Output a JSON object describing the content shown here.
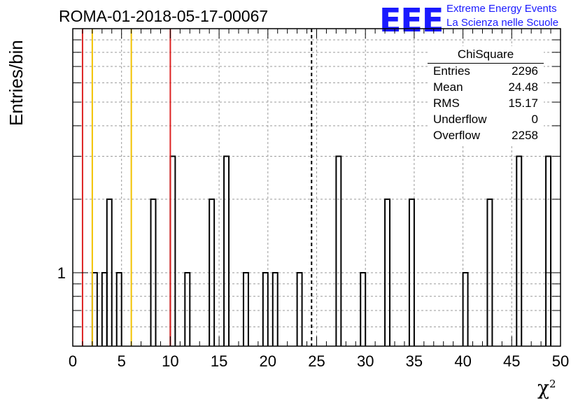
{
  "title": "ROMA-01-2018-05-17-00067",
  "logo": {
    "mark": "EEE",
    "line1": "Extreme Energy Events",
    "line2": "La Scienza nelle Scuole"
  },
  "stats": {
    "name": "ChiSquare",
    "rows": [
      {
        "key": "Entries",
        "value": "2296"
      },
      {
        "key": "Mean",
        "value": "24.48"
      },
      {
        "key": "RMS",
        "value": "15.17"
      },
      {
        "key": "Underflow",
        "value": "0"
      },
      {
        "key": "Overflow",
        "value": "2258"
      }
    ]
  },
  "chart_data": {
    "type": "bar",
    "histogram": true,
    "title": "ROMA-01-2018-05-17-00067",
    "xlabel": "χ²",
    "ylabel": "Entries/bin",
    "xlim": [
      0,
      50
    ],
    "ylim": [
      0.5,
      10
    ],
    "yscale": "log",
    "bin_width": 0.5,
    "grid": true,
    "x_ticks": [
      "0",
      "5",
      "10",
      "15",
      "20",
      "25",
      "30",
      "35",
      "40",
      "45",
      "50"
    ],
    "y_ticks": [
      "1"
    ],
    "bins": [
      {
        "x": 2.0,
        "value": 1
      },
      {
        "x": 3.0,
        "value": 1
      },
      {
        "x": 3.5,
        "value": 2
      },
      {
        "x": 4.5,
        "value": 1
      },
      {
        "x": 8.0,
        "value": 2
      },
      {
        "x": 10.0,
        "value": 3
      },
      {
        "x": 11.5,
        "value": 1
      },
      {
        "x": 14.0,
        "value": 2
      },
      {
        "x": 15.5,
        "value": 3
      },
      {
        "x": 17.5,
        "value": 1
      },
      {
        "x": 19.5,
        "value": 1
      },
      {
        "x": 20.5,
        "value": 1
      },
      {
        "x": 23.0,
        "value": 1
      },
      {
        "x": 27.0,
        "value": 3
      },
      {
        "x": 29.5,
        "value": 1
      },
      {
        "x": 32.0,
        "value": 2
      },
      {
        "x": 34.5,
        "value": 2
      },
      {
        "x": 40.0,
        "value": 1
      },
      {
        "x": 42.5,
        "value": 2
      },
      {
        "x": 45.5,
        "value": 3
      },
      {
        "x": 48.5,
        "value": 3
      }
    ],
    "vertical_lines": [
      {
        "x": 1.0,
        "color": "#dd2222",
        "style": "solid"
      },
      {
        "x": 2.0,
        "color": "#f2c200",
        "style": "solid"
      },
      {
        "x": 6.0,
        "color": "#f2c200",
        "style": "solid"
      },
      {
        "x": 10.0,
        "color": "#dd2222",
        "style": "solid"
      },
      {
        "x": 24.48,
        "color": "#000000",
        "style": "dashed"
      }
    ]
  }
}
